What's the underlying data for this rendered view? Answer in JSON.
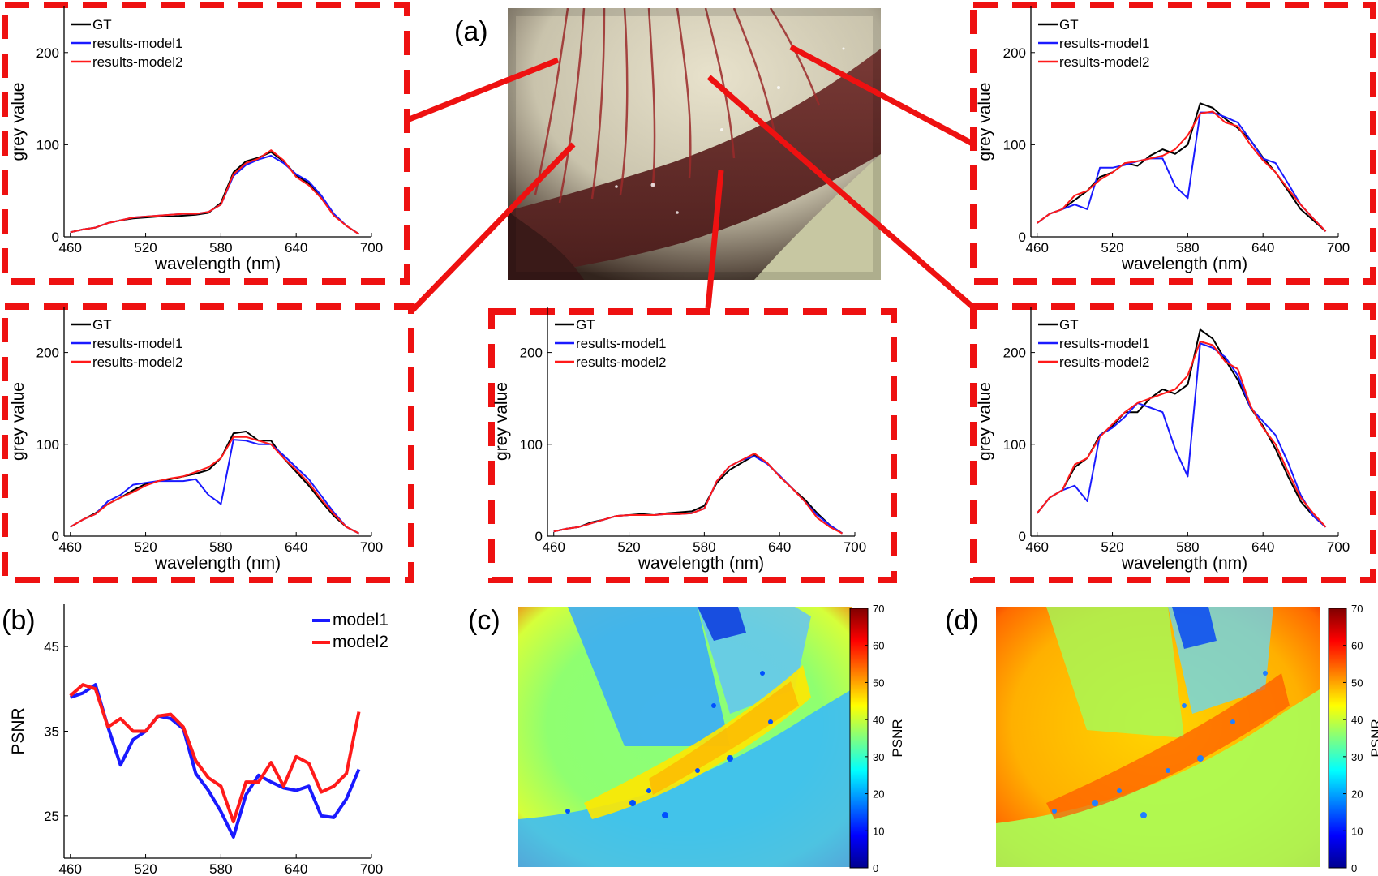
{
  "panel_labels": {
    "a": "(a)",
    "b": "(b)",
    "c": "(c)",
    "d": "(d)"
  },
  "colors": {
    "gt": "#000000",
    "model1": "#1a1aff",
    "model2": "#ff1a1a",
    "frame": "#ee1111",
    "axis": "#000000"
  },
  "chart_data": [
    {
      "id": "spectrum-top-left",
      "type": "line",
      "xlabel": "wavelength (nm)",
      "ylabel": "grey value",
      "xlim": [
        455,
        700
      ],
      "ylim": [
        0,
        250
      ],
      "xticks": [
        460,
        520,
        580,
        640,
        700
      ],
      "yticks": [
        0,
        100,
        200
      ],
      "legend": "top-left",
      "x": [
        460,
        470,
        480,
        490,
        500,
        510,
        520,
        530,
        540,
        550,
        560,
        570,
        580,
        590,
        600,
        610,
        620,
        630,
        640,
        650,
        660,
        670,
        680,
        690
      ],
      "series": [
        {
          "name": "GT",
          "color": "#000000",
          "values": [
            5,
            8,
            10,
            15,
            18,
            20,
            21,
            22,
            22,
            23,
            24,
            26,
            37,
            70,
            82,
            86,
            92,
            82,
            67,
            58,
            42,
            24,
            12,
            3
          ]
        },
        {
          "name": "results-model1",
          "color": "#1a1aff",
          "values": [
            5,
            8,
            10,
            15,
            18,
            21,
            22,
            23,
            24,
            25,
            25,
            27,
            35,
            66,
            78,
            84,
            88,
            80,
            68,
            60,
            45,
            25,
            12,
            3
          ]
        },
        {
          "name": "results-model2",
          "color": "#ff1a1a",
          "values": [
            5,
            8,
            10,
            15,
            18,
            21,
            22,
            23,
            24,
            25,
            25,
            27,
            35,
            68,
            80,
            85,
            94,
            83,
            65,
            56,
            42,
            23,
            12,
            3
          ]
        }
      ]
    },
    {
      "id": "spectrum-top-right",
      "type": "line",
      "xlabel": "wavelength (nm)",
      "ylabel": "grey value",
      "xlim": [
        455,
        700
      ],
      "ylim": [
        0,
        250
      ],
      "xticks": [
        460,
        520,
        580,
        640,
        700
      ],
      "yticks": [
        0,
        100,
        200
      ],
      "legend": "top-left",
      "x": [
        460,
        470,
        480,
        490,
        500,
        510,
        520,
        530,
        540,
        550,
        560,
        570,
        580,
        590,
        600,
        610,
        620,
        630,
        640,
        650,
        660,
        670,
        680,
        690
      ],
      "series": [
        {
          "name": "GT",
          "color": "#000000",
          "values": [
            15,
            25,
            30,
            40,
            50,
            65,
            70,
            80,
            77,
            88,
            95,
            90,
            100,
            145,
            140,
            128,
            118,
            105,
            86,
            70,
            50,
            30,
            18,
            6
          ]
        },
        {
          "name": "results-model1",
          "color": "#1a1aff",
          "values": [
            15,
            25,
            30,
            35,
            30,
            75,
            75,
            78,
            82,
            85,
            85,
            55,
            42,
            135,
            135,
            130,
            124,
            105,
            85,
            80,
            58,
            35,
            20,
            6
          ]
        },
        {
          "name": "results-model2",
          "color": "#ff1a1a",
          "values": [
            15,
            25,
            30,
            45,
            50,
            62,
            70,
            80,
            82,
            85,
            88,
            95,
            110,
            134,
            136,
            124,
            120,
            100,
            83,
            70,
            52,
            35,
            20,
            6
          ]
        }
      ]
    },
    {
      "id": "spectrum-bottom-left",
      "type": "line",
      "xlabel": "wavelength (nm)",
      "ylabel": "grey value",
      "xlim": [
        455,
        700
      ],
      "ylim": [
        0,
        250
      ],
      "xticks": [
        460,
        520,
        580,
        640,
        700
      ],
      "yticks": [
        0,
        100,
        200
      ],
      "legend": "top-left",
      "x": [
        460,
        470,
        480,
        490,
        500,
        510,
        520,
        530,
        540,
        550,
        560,
        570,
        580,
        590,
        600,
        610,
        620,
        630,
        640,
        650,
        660,
        670,
        680,
        690
      ],
      "series": [
        {
          "name": "GT",
          "color": "#000000",
          "values": [
            10,
            18,
            25,
            35,
            42,
            50,
            57,
            60,
            62,
            65,
            68,
            72,
            85,
            112,
            114,
            104,
            104,
            85,
            70,
            55,
            38,
            22,
            10,
            3
          ]
        },
        {
          "name": "results-model1",
          "color": "#1a1aff",
          "values": [
            10,
            18,
            24,
            38,
            45,
            56,
            58,
            60,
            60,
            60,
            62,
            45,
            35,
            105,
            104,
            100,
            100,
            88,
            75,
            62,
            44,
            26,
            10,
            3
          ]
        },
        {
          "name": "results-model2",
          "color": "#ff1a1a",
          "values": [
            10,
            18,
            24,
            35,
            42,
            48,
            55,
            60,
            63,
            65,
            70,
            75,
            85,
            108,
            108,
            104,
            100,
            85,
            72,
            58,
            40,
            24,
            10,
            3
          ]
        }
      ]
    },
    {
      "id": "spectrum-bottom-middle",
      "type": "line",
      "xlabel": "wavelength (nm)",
      "ylabel": "grey value",
      "xlim": [
        455,
        700
      ],
      "ylim": [
        0,
        250
      ],
      "xticks": [
        460,
        520,
        580,
        640,
        700
      ],
      "yticks": [
        0,
        100,
        200
      ],
      "legend": "top-left",
      "x": [
        460,
        470,
        480,
        490,
        500,
        510,
        520,
        530,
        540,
        550,
        560,
        570,
        580,
        590,
        600,
        610,
        620,
        630,
        640,
        650,
        660,
        670,
        680,
        690
      ],
      "series": [
        {
          "name": "GT",
          "color": "#000000",
          "values": [
            5,
            8,
            10,
            15,
            18,
            22,
            23,
            24,
            23,
            25,
            26,
            27,
            33,
            58,
            72,
            80,
            88,
            80,
            65,
            52,
            40,
            25,
            12,
            3
          ]
        },
        {
          "name": "results-model1",
          "color": "#1a1aff",
          "values": [
            5,
            8,
            10,
            14,
            18,
            22,
            23,
            23,
            23,
            24,
            24,
            25,
            30,
            60,
            76,
            83,
            87,
            79,
            66,
            52,
            38,
            23,
            12,
            3
          ]
        },
        {
          "name": "results-model2",
          "color": "#ff1a1a",
          "values": [
            5,
            8,
            10,
            14,
            18,
            22,
            23,
            23,
            23,
            24,
            24,
            25,
            30,
            60,
            76,
            83,
            90,
            80,
            65,
            52,
            38,
            20,
            10,
            3
          ]
        }
      ]
    },
    {
      "id": "spectrum-bottom-right",
      "type": "line",
      "xlabel": "wavelength (nm)",
      "ylabel": "grey value",
      "xlim": [
        455,
        700
      ],
      "ylim": [
        0,
        250
      ],
      "xticks": [
        460,
        520,
        580,
        640,
        700
      ],
      "yticks": [
        0,
        100,
        200
      ],
      "legend": "top-left",
      "x": [
        460,
        470,
        480,
        490,
        500,
        510,
        520,
        530,
        540,
        550,
        560,
        570,
        580,
        590,
        600,
        610,
        620,
        630,
        640,
        650,
        660,
        670,
        680,
        690
      ],
      "series": [
        {
          "name": "GT",
          "color": "#000000",
          "values": [
            25,
            42,
            50,
            75,
            85,
            110,
            120,
            135,
            135,
            150,
            160,
            155,
            165,
            225,
            215,
            192,
            170,
            140,
            120,
            95,
            65,
            38,
            22,
            10
          ]
        },
        {
          "name": "results-model1",
          "color": "#1a1aff",
          "values": [
            25,
            42,
            50,
            55,
            38,
            110,
            118,
            130,
            145,
            140,
            135,
            95,
            65,
            210,
            205,
            195,
            175,
            140,
            125,
            110,
            80,
            45,
            22,
            10
          ]
        },
        {
          "name": "results-model2",
          "color": "#ff1a1a",
          "values": [
            25,
            42,
            50,
            78,
            85,
            108,
            122,
            135,
            145,
            150,
            155,
            160,
            175,
            212,
            208,
            190,
            182,
            142,
            118,
            100,
            70,
            42,
            25,
            10
          ]
        }
      ]
    },
    {
      "id": "psnr-curve",
      "type": "line",
      "xlabel": "wavelength (nm)",
      "ylabel": "PSNR",
      "xlim": [
        455,
        700
      ],
      "ylim": [
        20,
        50
      ],
      "xticks": [
        460,
        520,
        580,
        640,
        700
      ],
      "yticks": [
        25,
        35,
        45
      ],
      "legend": "top-right",
      "x": [
        460,
        470,
        480,
        490,
        500,
        510,
        520,
        530,
        540,
        550,
        560,
        570,
        580,
        590,
        600,
        610,
        620,
        630,
        640,
        650,
        660,
        670,
        680,
        690
      ],
      "series": [
        {
          "name": "model1",
          "color": "#1a1aff",
          "values": [
            39,
            39.5,
            40.5,
            35.5,
            31,
            34,
            35,
            36.8,
            36.5,
            35.3,
            30,
            28,
            25.5,
            22.5,
            27.5,
            29.8,
            29,
            28.3,
            28,
            28.5,
            25,
            24.8,
            27,
            30.5
          ]
        },
        {
          "name": "model2",
          "color": "#ff1a1a",
          "values": [
            39.2,
            40.5,
            40,
            35.5,
            36.5,
            35,
            35,
            36.8,
            37,
            35.5,
            31.5,
            29.5,
            28.5,
            24.3,
            29,
            29,
            31.3,
            28.5,
            32,
            31.2,
            27.8,
            28.5,
            30,
            37.3
          ]
        }
      ]
    },
    {
      "id": "psnr-map-model1",
      "type": "heatmap",
      "colorbar_label": "PSNR",
      "colorbar_ticks": [
        0,
        10,
        20,
        30,
        40,
        50,
        60,
        70
      ]
    },
    {
      "id": "psnr-map-model2",
      "type": "heatmap",
      "colorbar_label": "PSNR",
      "colorbar_ticks": [
        0,
        10,
        20,
        30,
        40,
        50,
        60,
        70
      ]
    }
  ]
}
